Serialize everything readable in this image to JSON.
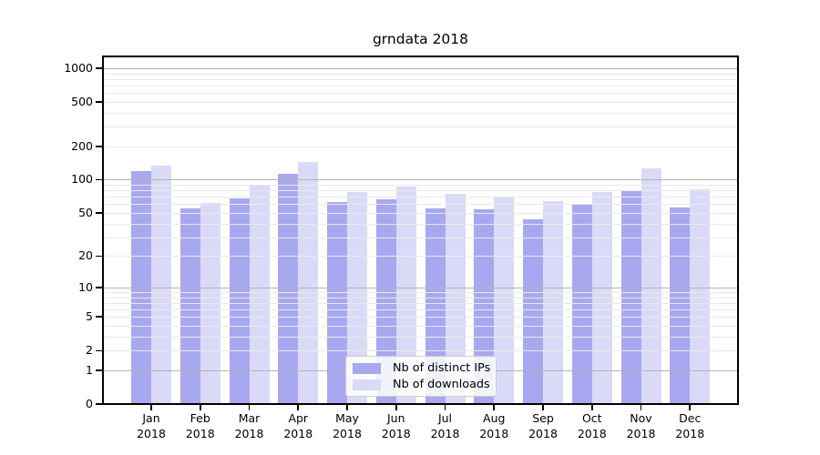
{
  "figure": {
    "title": "grndata 2018"
  },
  "legend": {
    "items": [
      {
        "label": "Nb of distinct IPs",
        "color": "#a8a8f0"
      },
      {
        "label": "Nb of downloads",
        "color": "#dadaf8"
      }
    ],
    "position": "lower center"
  },
  "chart_data": {
    "type": "bar",
    "title": "grndata 2018",
    "categories": [
      "Jan",
      "Feb",
      "Mar",
      "Apr",
      "May",
      "Jun",
      "Jul",
      "Aug",
      "Sep",
      "Oct",
      "Nov",
      "Dec"
    ],
    "year_label": "2018",
    "series": [
      {
        "name": "Nb of distinct IPs",
        "color": "#a8a8f0",
        "values": [
          120,
          55,
          68,
          112,
          63,
          67,
          55,
          54,
          44,
          59,
          79,
          56
        ]
      },
      {
        "name": "Nb of downloads",
        "color": "#dadaf8",
        "values": [
          134,
          62,
          90,
          145,
          78,
          87,
          74,
          71,
          64,
          78,
          126,
          82
        ]
      }
    ],
    "xlabel": "",
    "ylabel": "",
    "yscale": "log1p",
    "ylim": [
      0,
      1300
    ],
    "y_ticks": [
      0,
      1,
      2,
      5,
      10,
      20,
      50,
      100,
      200,
      500,
      1000
    ],
    "y_major_gridlines": [
      1,
      10,
      100,
      1000
    ],
    "y_minor_gridlines": [
      2,
      3,
      4,
      5,
      6,
      7,
      8,
      9,
      20,
      30,
      40,
      50,
      60,
      70,
      80,
      90,
      200,
      300,
      400,
      500,
      600,
      700,
      800,
      900
    ],
    "grid": true,
    "legend_position": "lower center"
  },
  "colors": {
    "background": "#ffffff",
    "spine": "#000000",
    "text": "#000000",
    "major_grid": "#b3b3b3",
    "minor_grid": "#e9e9e9"
  }
}
